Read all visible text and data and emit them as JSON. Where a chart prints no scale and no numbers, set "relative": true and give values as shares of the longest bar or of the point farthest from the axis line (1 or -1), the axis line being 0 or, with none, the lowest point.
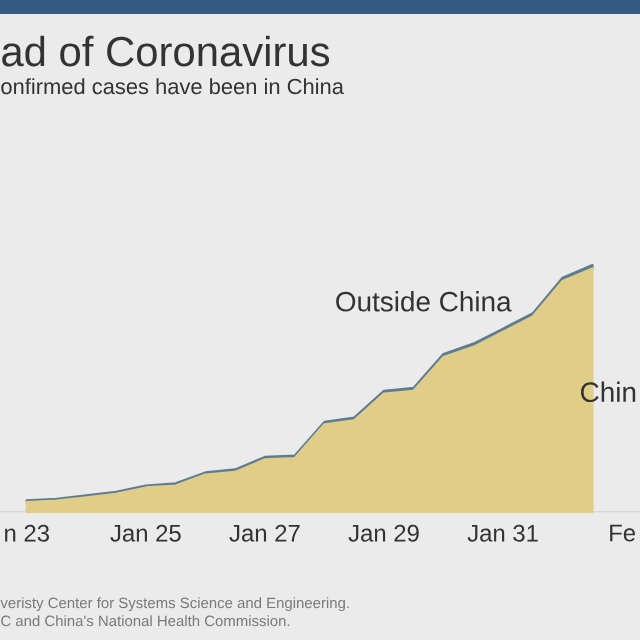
{
  "chart_data": {
    "type": "area",
    "stacked": true,
    "relative": true,
    "title": "ad of Coronavirus",
    "subtitle": "onfirmed cases have been in China",
    "annotations": [
      "veristy Center for Systems Science and Engineering.",
      "C and China's National Health Commission."
    ],
    "categories": [
      "n 23",
      null,
      null,
      null,
      "Jan 25",
      null,
      null,
      null,
      "Jan 27",
      null,
      null,
      null,
      "Jan 29",
      null,
      null,
      null,
      "Jan 31",
      null,
      null,
      null,
      "Fe"
    ],
    "series": [
      {
        "name": "Chin",
        "color": "#e0cd88",
        "values": [
          0.039,
          0.045,
          0.058,
          0.072,
          0.098,
          0.106,
          0.15,
          0.161,
          0.212,
          0.217,
          0.354,
          0.37,
          0.479,
          0.49,
          0.627,
          0.668,
          0.729,
          0.791,
          0.935,
          0.986,
          null
        ]
      },
      {
        "name": "Outside China",
        "color": "#5f7d91",
        "values": [
          0.007,
          0.007,
          0.008,
          0.008,
          0.008,
          0.009,
          0.009,
          0.01,
          0.01,
          0.01,
          0.01,
          0.011,
          0.011,
          0.012,
          0.012,
          0.013,
          0.013,
          0.013,
          0.013,
          0.014,
          null
        ]
      }
    ]
  }
}
